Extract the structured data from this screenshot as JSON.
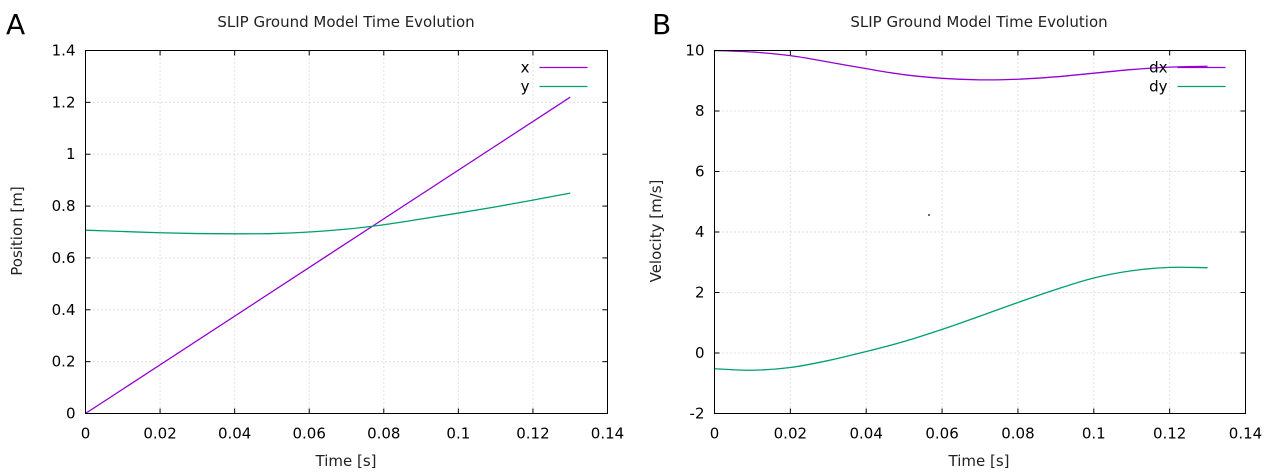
{
  "chart_data": [
    {
      "type": "line",
      "panel_label": "A",
      "title": "SLIP Ground Model Time Evolution",
      "xlabel": "Time [s]",
      "ylabel": "Position [m]",
      "xlim": [
        0,
        0.14
      ],
      "ylim": [
        0,
        1.4
      ],
      "xticks": [
        "0",
        "0.02",
        "0.04",
        "0.06",
        "0.08",
        "0.1",
        "0.12",
        "0.14"
      ],
      "yticks": [
        "0",
        "0.2",
        "0.4",
        "0.6",
        "0.8",
        "1",
        "1.2",
        "1.4"
      ],
      "grid": true,
      "legend_position": "top-right",
      "series": [
        {
          "name": "x",
          "color": "#9400d3",
          "x": [
            0,
            0.13
          ],
          "y": [
            0,
            1.22
          ]
        },
        {
          "name": "y",
          "color": "#009e73",
          "x": [
            0,
            0.01,
            0.02,
            0.03,
            0.04,
            0.05,
            0.06,
            0.07,
            0.08,
            0.09,
            0.1,
            0.11,
            0.12,
            0.13
          ],
          "y": [
            0.707,
            0.702,
            0.697,
            0.694,
            0.693,
            0.694,
            0.7,
            0.711,
            0.728,
            0.75,
            0.773,
            0.797,
            0.823,
            0.85
          ]
        }
      ]
    },
    {
      "type": "line",
      "panel_label": "B",
      "title": "SLIP Ground Model Time Evolution",
      "xlabel": "Time [s]",
      "ylabel": "Velocity [m/s]",
      "xlim": [
        0,
        0.14
      ],
      "ylim": [
        -2,
        10
      ],
      "xticks": [
        "0",
        "0.02",
        "0.04",
        "0.06",
        "0.08",
        "0.1",
        "0.12",
        "0.14"
      ],
      "yticks": [
        "-2",
        "0",
        "2",
        "4",
        "6",
        "8",
        "10"
      ],
      "grid": true,
      "legend_position": "top-right",
      "series": [
        {
          "name": "dx",
          "color": "#9400d3",
          "x": [
            0,
            0.01,
            0.02,
            0.03,
            0.04,
            0.05,
            0.06,
            0.07,
            0.08,
            0.09,
            0.1,
            0.11,
            0.12,
            0.13
          ],
          "y": [
            10.0,
            9.95,
            9.83,
            9.62,
            9.4,
            9.2,
            9.08,
            9.03,
            9.05,
            9.13,
            9.25,
            9.37,
            9.45,
            9.48
          ]
        },
        {
          "name": "dy",
          "color": "#009e73",
          "x": [
            0,
            0.01,
            0.02,
            0.03,
            0.04,
            0.05,
            0.06,
            0.07,
            0.08,
            0.09,
            0.1,
            0.11,
            0.12,
            0.13
          ],
          "y": [
            -0.52,
            -0.57,
            -0.48,
            -0.25,
            0.05,
            0.38,
            0.78,
            1.22,
            1.67,
            2.1,
            2.48,
            2.72,
            2.83,
            2.82
          ]
        }
      ]
    }
  ]
}
